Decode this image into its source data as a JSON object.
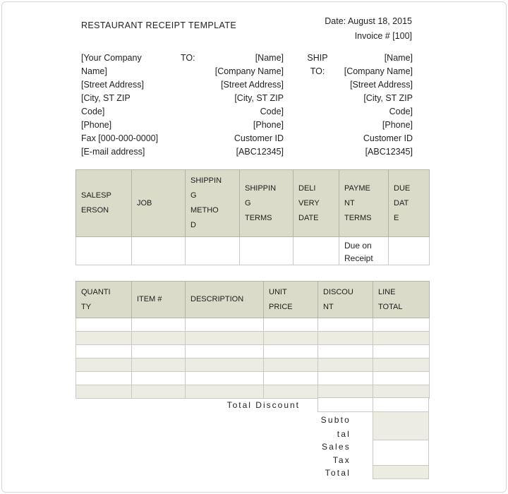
{
  "page": {
    "title": "RESTAURANT RECEIPT TEMPLATE",
    "date_line": "Date: August 18, 2015",
    "invoice_line": "Invoice # [100]"
  },
  "addresses": {
    "company": "[Your Company\nName]\n[Street Address]\n[City, ST  ZIP\nCode]\n[Phone]\nFax [000-000-0000]\n[E-mail address]",
    "to_label": "TO:",
    "to": "[Name]\n[Company Name]\n[Street Address]\n[City, ST  ZIP\nCode]\n[Phone]\nCustomer ID\n[ABC12345]",
    "ship_to_label": "SHIP\nTO:",
    "ship_to": "[Name]\n[Company Name]\n[Street Address]\n[City, ST  ZIP\nCode]\n[Phone]\nCustomer ID\n[ABC12345]"
  },
  "order_info_table": {
    "headers": [
      "SALESP\nERSON",
      "JOB",
      "SHIPPIN\nG\nMETHO\nD",
      "SHIPPIN\nG\nTERMS",
      "DELI\nVERY\nDATE",
      "PAYME\nNT\nTERMS",
      "DUE\nDAT\nE"
    ],
    "row": [
      "",
      "",
      "",
      "",
      "",
      "Due on\nReceipt",
      ""
    ]
  },
  "items_table": {
    "headers": [
      "QUANTI\nTY",
      "ITEM #",
      "DESCRIPTION",
      "UNIT\nPRICE",
      "DISCOU\nNT",
      "LINE\nTOTAL"
    ],
    "rows": [
      [
        "",
        "",
        "",
        "",
        "",
        ""
      ],
      [
        "",
        "",
        "",
        "",
        "",
        ""
      ],
      [
        "",
        "",
        "",
        "",
        "",
        ""
      ],
      [
        "",
        "",
        "",
        "",
        "",
        ""
      ],
      [
        "",
        "",
        "",
        "",
        "",
        ""
      ],
      [
        "",
        "",
        "",
        "",
        "",
        ""
      ]
    ]
  },
  "totals": {
    "total_discount_label": "Total Discount",
    "total_discount_value": "",
    "total_discount_line_total_value": "",
    "subtotal_label": "Subto\ntal",
    "subtotal_value": "",
    "sales_tax_label": "Sales\nTax",
    "sales_tax_value": "",
    "total_label": "Total",
    "total_value": ""
  },
  "colors": {
    "header_fill": "#dbdbc9",
    "alt_row_fill": "#ecece2",
    "header_border": "#b3b3a9",
    "grid_border": "#c9c9c1",
    "frame_border": "#d7d7d5"
  }
}
